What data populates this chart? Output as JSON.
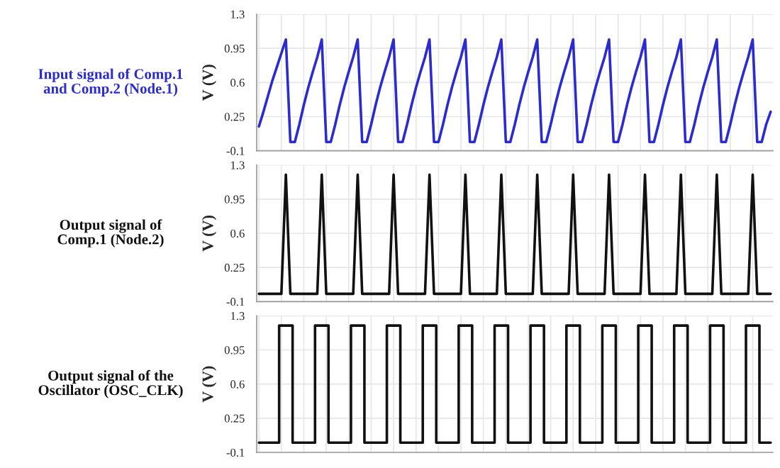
{
  "chart_data": [
    {
      "type": "line",
      "title": "Input signal of Comp.1\nand Comp.2 (Node.1)",
      "ylabel": "V (V)",
      "ylim": [
        -0.1,
        1.3
      ],
      "yticks": [
        -0.1,
        0.25,
        0.6,
        0.95,
        1.3
      ],
      "grid": true,
      "tick_labels": "y",
      "categories": [
        null,
        null,
        null,
        null,
        null,
        null,
        null,
        null,
        null,
        null,
        null,
        null,
        null,
        null,
        null,
        null,
        null,
        null,
        null,
        null,
        null,
        null,
        null,
        null,
        null,
        null,
        null,
        null,
        null,
        null,
        null,
        null,
        null,
        null,
        null,
        null,
        null,
        null,
        null,
        null,
        null,
        null,
        null,
        null,
        null,
        null,
        null,
        null,
        null,
        null,
        null,
        null,
        null,
        null,
        null,
        null,
        null,
        null,
        null,
        null,
        null,
        null,
        null,
        null,
        null,
        null,
        null,
        null,
        null,
        null,
        null,
        null,
        null,
        null,
        null,
        null,
        null,
        null,
        null,
        null,
        null,
        null,
        null,
        null,
        null,
        null,
        null,
        null,
        null,
        null,
        null,
        null,
        null,
        null,
        null,
        null,
        null,
        null,
        null,
        null,
        null,
        null,
        null,
        null,
        null,
        null,
        null,
        null,
        null,
        null,
        null,
        null,
        null,
        null,
        null
      ],
      "series": [
        {
          "color": "#2b2bd0",
          "values": [
            0.15,
            0.3,
            0.46,
            0.62,
            0.76,
            0.9,
            1.04,
            -0.01,
            -0.01,
            0.17,
            0.37,
            0.55,
            0.71,
            0.86,
            1.04,
            -0.01,
            -0.01,
            0.17,
            0.37,
            0.55,
            0.71,
            0.86,
            1.04,
            -0.01,
            -0.01,
            0.17,
            0.37,
            0.55,
            0.71,
            0.86,
            1.04,
            -0.01,
            -0.01,
            0.17,
            0.37,
            0.55,
            0.71,
            0.86,
            1.04,
            -0.01,
            -0.01,
            0.17,
            0.37,
            0.55,
            0.71,
            0.86,
            1.04,
            -0.01,
            -0.01,
            0.17,
            0.37,
            0.55,
            0.71,
            0.86,
            1.04,
            -0.01,
            -0.01,
            0.17,
            0.37,
            0.55,
            0.71,
            0.86,
            1.04,
            -0.01,
            -0.01,
            0.17,
            0.37,
            0.55,
            0.71,
            0.86,
            1.04,
            -0.01,
            -0.01,
            0.17,
            0.37,
            0.55,
            0.71,
            0.86,
            1.04,
            -0.01,
            -0.01,
            0.17,
            0.37,
            0.55,
            0.71,
            0.86,
            1.04,
            -0.01,
            -0.01,
            0.17,
            0.37,
            0.55,
            0.71,
            0.86,
            1.04,
            -0.01,
            -0.01,
            0.17,
            0.37,
            0.55,
            0.71,
            0.86,
            1.04,
            -0.01,
            -0.01,
            0.17,
            0.37,
            0.55,
            0.71,
            0.86,
            1.04,
            -0.01,
            -0.01,
            0.17,
            0.3
          ]
        }
      ]
    },
    {
      "type": "line",
      "title": "Output signal of\nComp.1 (Node.2)",
      "ylabel": "V (V)",
      "ylim": [
        -0.1,
        1.3
      ],
      "yticks": [
        -0.1,
        0.25,
        0.6,
        0.95,
        1.3
      ],
      "grid": true,
      "tick_labels": "y",
      "categories": [
        null,
        null,
        null,
        null,
        null,
        null,
        null,
        null,
        null,
        null,
        null,
        null,
        null,
        null,
        null,
        null,
        null,
        null,
        null,
        null,
        null,
        null,
        null,
        null,
        null,
        null,
        null,
        null,
        null,
        null,
        null,
        null,
        null,
        null,
        null,
        null,
        null,
        null,
        null,
        null,
        null,
        null,
        null,
        null,
        null,
        null,
        null,
        null,
        null,
        null,
        null,
        null,
        null,
        null,
        null,
        null,
        null,
        null,
        null,
        null,
        null,
        null,
        null,
        null,
        null,
        null,
        null,
        null,
        null,
        null,
        null,
        null,
        null,
        null,
        null,
        null,
        null,
        null,
        null,
        null,
        null,
        null,
        null,
        null,
        null,
        null,
        null,
        null,
        null,
        null,
        null,
        null,
        null,
        null,
        null,
        null,
        null,
        null,
        null,
        null,
        null,
        null,
        null,
        null,
        null,
        null,
        null,
        null,
        null,
        null,
        null,
        null,
        null,
        null,
        null
      ],
      "series": [
        {
          "color": "#111111",
          "values": [
            -0.02,
            -0.02,
            -0.02,
            -0.02,
            -0.02,
            -0.02,
            1.2,
            -0.02,
            -0.02,
            -0.02,
            -0.02,
            -0.02,
            -0.02,
            -0.02,
            1.2,
            -0.02,
            -0.02,
            -0.02,
            -0.02,
            -0.02,
            -0.02,
            -0.02,
            1.2,
            -0.02,
            -0.02,
            -0.02,
            -0.02,
            -0.02,
            -0.02,
            -0.02,
            1.2,
            -0.02,
            -0.02,
            -0.02,
            -0.02,
            -0.02,
            -0.02,
            -0.02,
            1.2,
            -0.02,
            -0.02,
            -0.02,
            -0.02,
            -0.02,
            -0.02,
            -0.02,
            1.2,
            -0.02,
            -0.02,
            -0.02,
            -0.02,
            -0.02,
            -0.02,
            -0.02,
            1.2,
            -0.02,
            -0.02,
            -0.02,
            -0.02,
            -0.02,
            -0.02,
            -0.02,
            1.2,
            -0.02,
            -0.02,
            -0.02,
            -0.02,
            -0.02,
            -0.02,
            -0.02,
            1.2,
            -0.02,
            -0.02,
            -0.02,
            -0.02,
            -0.02,
            -0.02,
            -0.02,
            1.2,
            -0.02,
            -0.02,
            -0.02,
            -0.02,
            -0.02,
            -0.02,
            -0.02,
            1.2,
            -0.02,
            -0.02,
            -0.02,
            -0.02,
            -0.02,
            -0.02,
            -0.02,
            1.2,
            -0.02,
            -0.02,
            -0.02,
            -0.02,
            -0.02,
            -0.02,
            -0.02,
            1.2,
            -0.02,
            -0.02,
            -0.02,
            -0.02,
            -0.02,
            -0.02,
            -0.02,
            1.2,
            -0.02,
            -0.02,
            -0.02,
            -0.02
          ]
        }
      ]
    },
    {
      "type": "step",
      "title": "Output signal of the\nOscillator (OSC_CLK)",
      "ylabel": "V (V)",
      "ylim": [
        -0.1,
        1.3
      ],
      "yticks": [
        -0.1,
        0.25,
        0.6,
        0.95,
        1.3
      ],
      "grid": true,
      "tick_labels": "y",
      "categories": [
        null,
        null,
        null,
        null,
        null,
        null,
        null,
        null,
        null,
        null,
        null,
        null,
        null,
        null,
        null,
        null,
        null,
        null,
        null,
        null,
        null,
        null,
        null,
        null,
        null,
        null,
        null,
        null,
        null,
        null,
        null,
        null,
        null,
        null,
        null,
        null,
        null,
        null,
        null,
        null,
        null,
        null,
        null,
        null,
        null,
        null,
        null,
        null,
        null,
        null,
        null,
        null,
        null,
        null,
        null,
        null,
        null,
        null,
        null,
        null,
        null,
        null,
        null,
        null,
        null,
        null,
        null,
        null,
        null,
        null,
        null,
        null,
        null,
        null,
        null,
        null,
        null,
        null,
        null,
        null,
        null,
        null,
        null,
        null,
        null,
        null,
        null,
        null,
        null,
        null,
        null,
        null,
        null,
        null,
        null,
        null,
        null,
        null,
        null,
        null,
        null,
        null,
        null,
        null,
        null,
        null,
        null,
        null,
        null,
        null,
        null,
        null,
        null,
        null,
        null
      ],
      "series": [
        {
          "color": "#111111",
          "values": [
            0,
            0,
            0,
            0,
            0,
            1.2,
            1.2,
            1.2,
            0,
            0,
            0,
            0,
            0,
            1.2,
            1.2,
            1.2,
            0,
            0,
            0,
            0,
            0,
            1.2,
            1.2,
            1.2,
            0,
            0,
            0,
            0,
            0,
            1.2,
            1.2,
            1.2,
            0,
            0,
            0,
            0,
            0,
            1.2,
            1.2,
            1.2,
            0,
            0,
            0,
            0,
            0,
            1.2,
            1.2,
            1.2,
            0,
            0,
            0,
            0,
            0,
            1.2,
            1.2,
            1.2,
            0,
            0,
            0,
            0,
            0,
            1.2,
            1.2,
            1.2,
            0,
            0,
            0,
            0,
            0,
            1.2,
            1.2,
            1.2,
            0,
            0,
            0,
            0,
            0,
            1.2,
            1.2,
            1.2,
            0,
            0,
            0,
            0,
            0,
            1.2,
            1.2,
            1.2,
            0,
            0,
            0,
            0,
            0,
            1.2,
            1.2,
            1.2,
            0,
            0,
            0,
            0,
            0,
            1.2,
            1.2,
            1.2,
            0,
            0,
            0,
            0,
            0,
            1.2,
            1.2,
            1.2,
            0,
            0,
            0
          ]
        }
      ]
    }
  ]
}
